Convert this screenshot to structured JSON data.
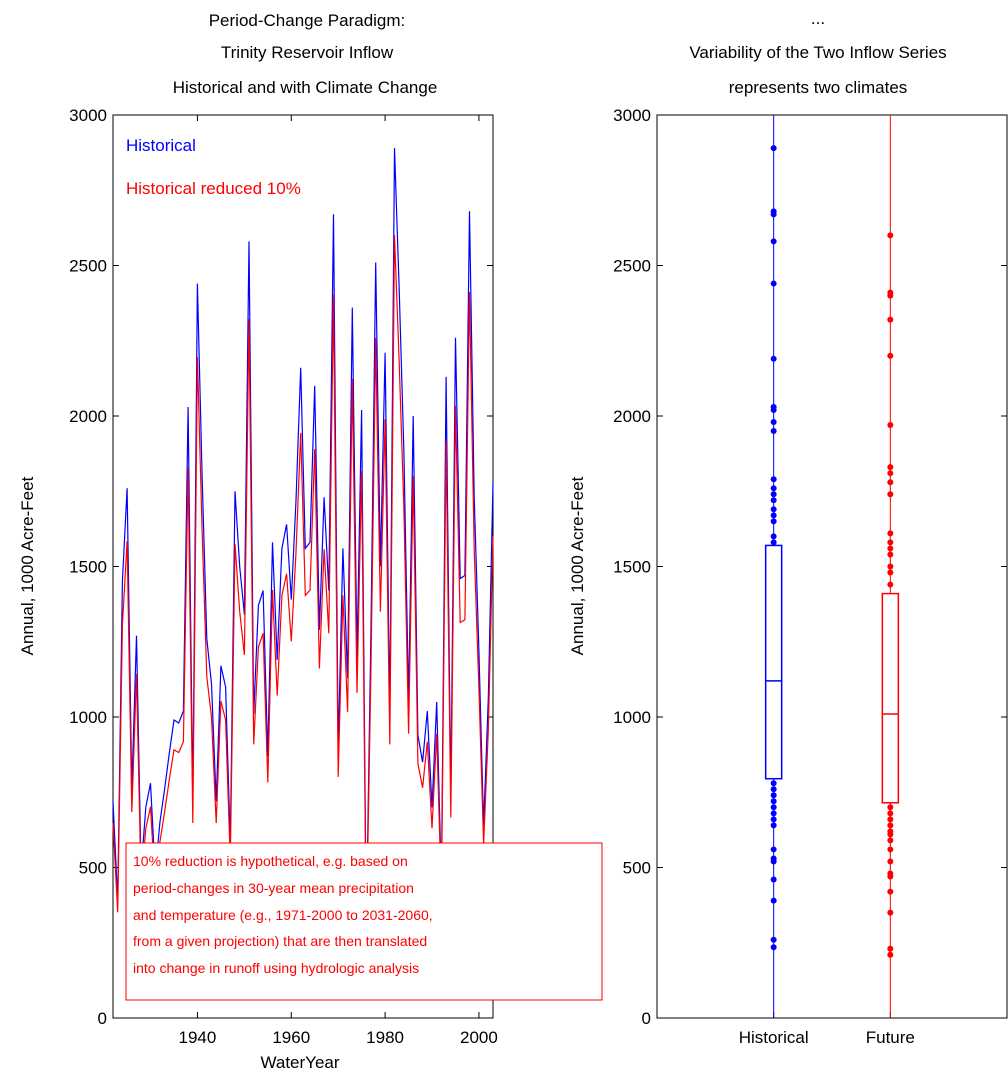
{
  "chart_data": [
    {
      "type": "line",
      "title": [
        "Period-Change Paradigm:",
        "Trinity Reservoir Inflow",
        "Historical and with Climate Change"
      ],
      "xlabel": "WaterYear",
      "ylabel": "Annual, 1000 Acre-Feet",
      "xlim": [
        1922,
        2003
      ],
      "ylim": [
        0,
        3000
      ],
      "xticks": [
        1940,
        1960,
        1980,
        2000
      ],
      "yticks": [
        0,
        500,
        1000,
        1500,
        2000,
        2500,
        3000
      ],
      "legend_position": "top-left",
      "x": [
        1922,
        1923,
        1924,
        1925,
        1926,
        1927,
        1928,
        1929,
        1930,
        1931,
        1932,
        1933,
        1934,
        1935,
        1936,
        1937,
        1938,
        1939,
        1940,
        1941,
        1942,
        1943,
        1944,
        1945,
        1946,
        1947,
        1948,
        1949,
        1950,
        1951,
        1952,
        1953,
        1954,
        1955,
        1956,
        1957,
        1958,
        1959,
        1960,
        1961,
        1962,
        1963,
        1964,
        1965,
        1966,
        1967,
        1968,
        1969,
        1970,
        1971,
        1972,
        1973,
        1974,
        1975,
        1976,
        1977,
        1978,
        1979,
        1980,
        1981,
        1982,
        1983,
        1984,
        1985,
        1986,
        1987,
        1988,
        1989,
        1990,
        1991,
        1992,
        1993,
        1994,
        1995,
        1996,
        1997,
        1998,
        1999,
        2000,
        2001,
        2002,
        2003
      ],
      "series": [
        {
          "name": "Historical",
          "color": "#0000ff",
          "values": [
            720,
            390,
            1450,
            1760,
            760,
            1270,
            490,
            700,
            780,
            480,
            650,
            760,
            880,
            990,
            980,
            1020,
            2030,
            720,
            2440,
            1800,
            1260,
            1110,
            720,
            1170,
            1100,
            580,
            1750,
            1500,
            1340,
            2580,
            1010,
            1370,
            1420,
            870,
            1580,
            1190,
            1560,
            1640,
            1390,
            1720,
            2160,
            1560,
            1580,
            2100,
            1290,
            1730,
            1420,
            2670,
            890,
            1560,
            1130,
            2360,
            1200,
            2020,
            300,
            1300,
            2510,
            1500,
            2210,
            1010,
            2890,
            2420,
            1880,
            1050,
            2000,
            940,
            850,
            1020,
            700,
            1050,
            450,
            2130,
            740,
            2260,
            1460,
            1470,
            2680,
            1730,
            1220,
            640,
            1060,
            1780
          ]
        },
        {
          "name": "Historical reduced 10%",
          "color": "#ff0000",
          "values": [
            648,
            351,
            1305,
            1584,
            684,
            1143,
            441,
            630,
            702,
            432,
            585,
            684,
            792,
            891,
            882,
            918,
            1827,
            648,
            2196,
            1620,
            1134,
            999,
            648,
            1053,
            990,
            522,
            1575,
            1350,
            1206,
            2322,
            909,
            1233,
            1278,
            783,
            1422,
            1071,
            1404,
            1476,
            1251,
            1548,
            1944,
            1404,
            1422,
            1890,
            1161,
            1557,
            1278,
            2403,
            801,
            1404,
            1017,
            2124,
            1080,
            1818,
            270,
            1170,
            2259,
            1350,
            1989,
            909,
            2601,
            2178,
            1692,
            945,
            1800,
            846,
            765,
            918,
            630,
            945,
            405,
            1917,
            666,
            2034,
            1314,
            1323,
            2412,
            1557,
            1098,
            576,
            954,
            1602
          ]
        }
      ],
      "annotation": [
        "10% reduction is hypothetical, e.g. based on",
        "period-changes in 30-year mean precipitation",
        "and temperature (e.g., 1971-2000 to 2031-2060,",
        "from a given projection) that are then translated",
        "into change in runoff using hydrologic analysis"
      ],
      "annotation_color": "#ff0000"
    },
    {
      "type": "box",
      "title": [
        "...",
        "Variability of the Two Inflow Series",
        "represents two climates"
      ],
      "xlabel": "",
      "ylabel": "Annual, 1000 Acre-Feet",
      "ylim": [
        0,
        3000
      ],
      "yticks": [
        0,
        500,
        1000,
        1500,
        2000,
        2500,
        3000
      ],
      "categories": [
        "Historical",
        "Future"
      ],
      "boxes": [
        {
          "name": "Historical",
          "color": "#0000ff",
          "q1": 795,
          "median": 1120,
          "q3": 1570,
          "points": [
            2890,
            2680,
            2670,
            2580,
            2440,
            2190,
            2030,
            2020,
            1980,
            1950,
            1790,
            1760,
            1740,
            1720,
            1690,
            1670,
            1650,
            1600,
            1580,
            780,
            760,
            740,
            720,
            700,
            680,
            660,
            640,
            560,
            530,
            520,
            460,
            390,
            260,
            235
          ]
        },
        {
          "name": "Future",
          "color": "#ff0000",
          "q1": 715,
          "median": 1010,
          "q3": 1410,
          "points": [
            2600,
            2410,
            2400,
            2320,
            2200,
            1970,
            1830,
            1810,
            1780,
            1740,
            1610,
            1580,
            1560,
            1540,
            1500,
            1480,
            1440,
            700,
            680,
            660,
            640,
            620,
            610,
            590,
            560,
            520,
            480,
            470,
            420,
            350,
            230,
            210
          ]
        }
      ]
    }
  ]
}
